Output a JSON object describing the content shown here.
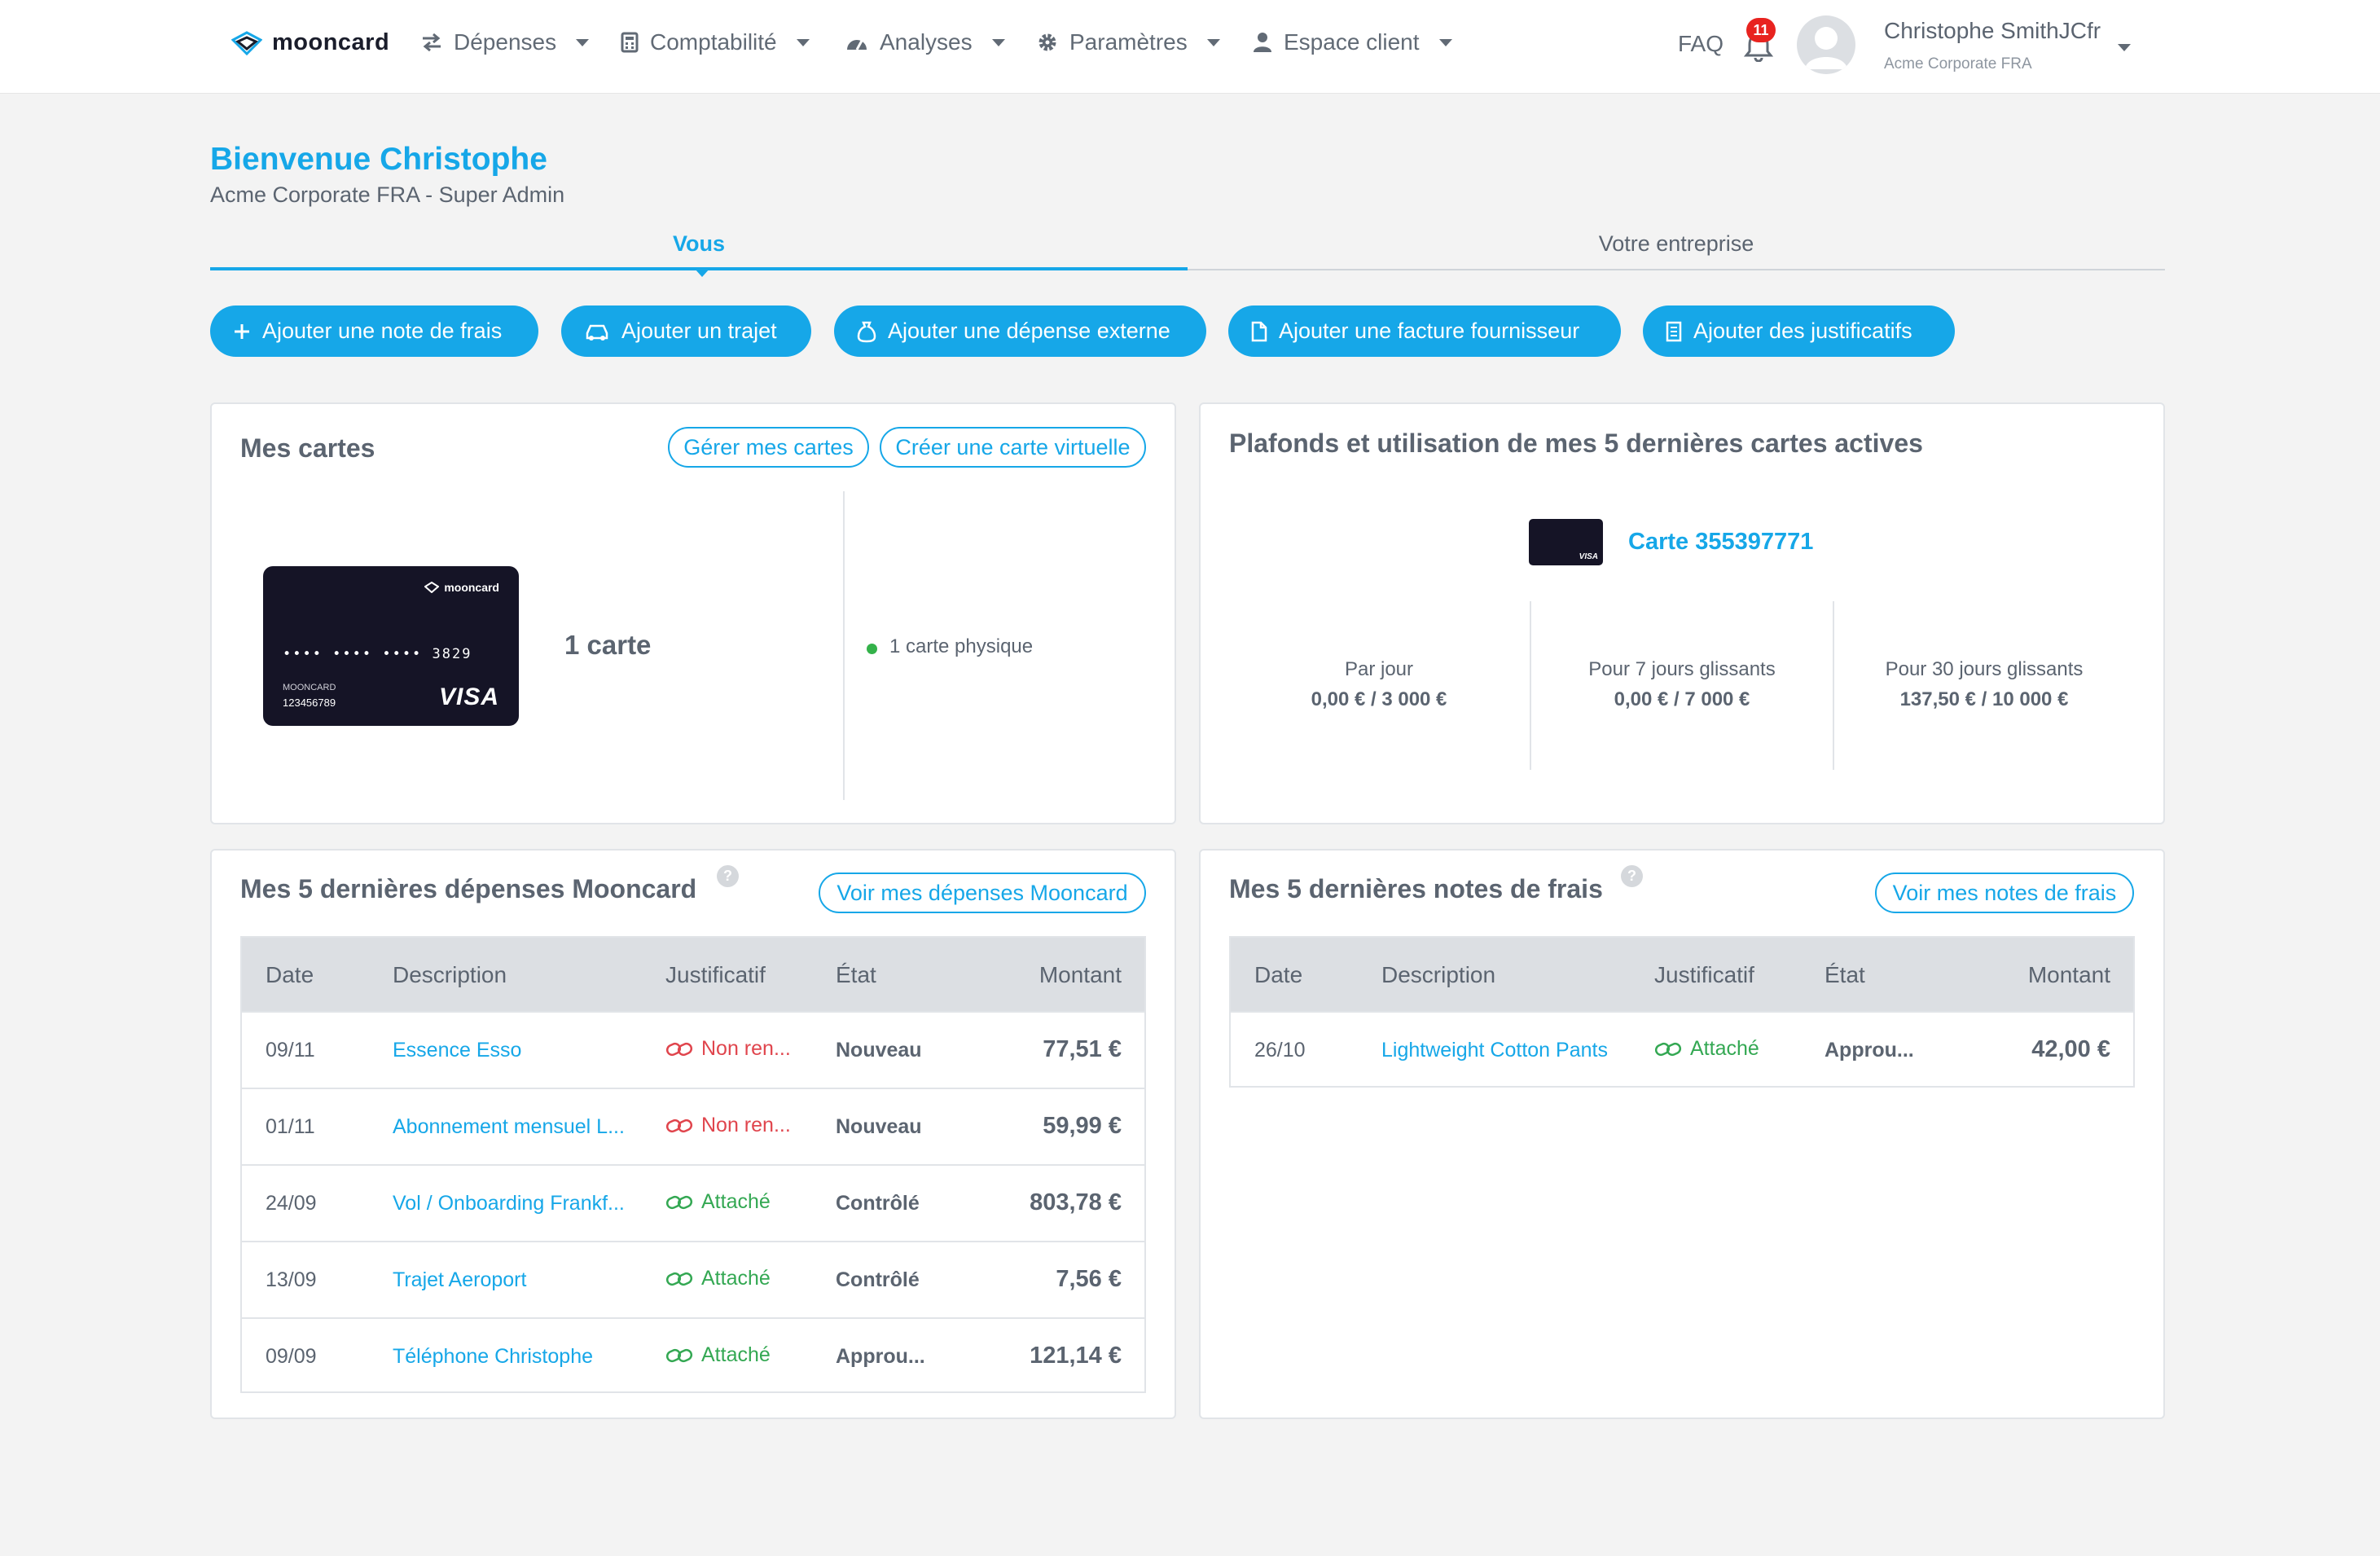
{
  "nav": {
    "logo": "mooncard",
    "items": [
      {
        "label": "Dépenses",
        "icon": "transfer-icon"
      },
      {
        "label": "Comptabilité",
        "icon": "calculator-icon"
      },
      {
        "label": "Analyses",
        "icon": "gauge-icon"
      },
      {
        "label": "Paramètres",
        "icon": "gear-icon"
      },
      {
        "label": "Espace client",
        "icon": "person-icon"
      }
    ],
    "faq": "FAQ",
    "notifications": "11",
    "user_name": "Christophe SmithJCfr",
    "user_company": "Acme Corporate FRA"
  },
  "welcome": {
    "title": "Bienvenue Christophe",
    "subtitle": "Acme Corporate FRA - Super Admin"
  },
  "tabs": [
    "Vous",
    "Votre entreprise"
  ],
  "actions": [
    "Ajouter une note de frais",
    "Ajouter un trajet",
    "Ajouter une dépense externe",
    "Ajouter une facture fournisseur",
    "Ajouter des justificatifs"
  ],
  "my_cards": {
    "title": "Mes cartes",
    "manage_btn": "Gérer mes cartes",
    "create_btn": "Créer une carte virtuelle",
    "card_brand": "mooncard",
    "card_number": "•••• •••• •••• 3829",
    "card_holder": "MOONCARD",
    "card_id": "123456789",
    "card_network": "VISA",
    "count": "1 carte",
    "physical": "1 carte physique"
  },
  "limits": {
    "title": "Plafonds et utilisation de mes 5 dernières cartes actives",
    "card_label": "Carte 355397771",
    "columns": [
      {
        "label": "Par jour",
        "value": "0,00 € / 3 000 €"
      },
      {
        "label": "Pour 7 jours glissants",
        "value": "0,00 € / 7 000 €"
      },
      {
        "label": "Pour 30 jours glissants",
        "value": "137,50 € / 10 000 €"
      }
    ]
  },
  "expenses": {
    "title": "Mes 5 dernières dépenses Mooncard",
    "help": "?",
    "button": "Voir mes dépenses Mooncard",
    "headers": [
      "Date",
      "Description",
      "Justificatif",
      "État",
      "Montant"
    ],
    "rows": [
      {
        "date": "09/11",
        "desc": "Essence Esso",
        "just": "Non ren...",
        "state": "Nouveau",
        "amount": "77,51 €"
      },
      {
        "date": "01/11",
        "desc": "Abonnement mensuel L...",
        "just": "Non ren...",
        "state": "Nouveau",
        "amount": "59,99 €"
      },
      {
        "date": "24/09",
        "desc": "Vol / Onboarding Frankf...",
        "just": "Attaché",
        "state": "Contrôlé",
        "amount": "803,78 €"
      },
      {
        "date": "13/09",
        "desc": "Trajet Aeroport",
        "just": "Attaché",
        "state": "Contrôlé",
        "amount": "7,56 €"
      },
      {
        "date": "09/09",
        "desc": "Téléphone Christophe",
        "just": "Attaché",
        "state": "Approu...",
        "amount": "121,14 €"
      }
    ]
  },
  "notes": {
    "title": "Mes 5 dernières notes de frais",
    "help": "?",
    "button": "Voir mes notes de frais",
    "headers": [
      "Date",
      "Description",
      "Justificatif",
      "État",
      "Montant"
    ],
    "rows": [
      {
        "date": "26/10",
        "desc": "Lightweight Cotton Pants",
        "just": "Attaché",
        "state": "Approu...",
        "amount": "42,00 €"
      }
    ]
  },
  "colors": {
    "accent": "#16a7e8",
    "danger": "#e0454d",
    "success": "#34a853",
    "card": "#151426"
  }
}
